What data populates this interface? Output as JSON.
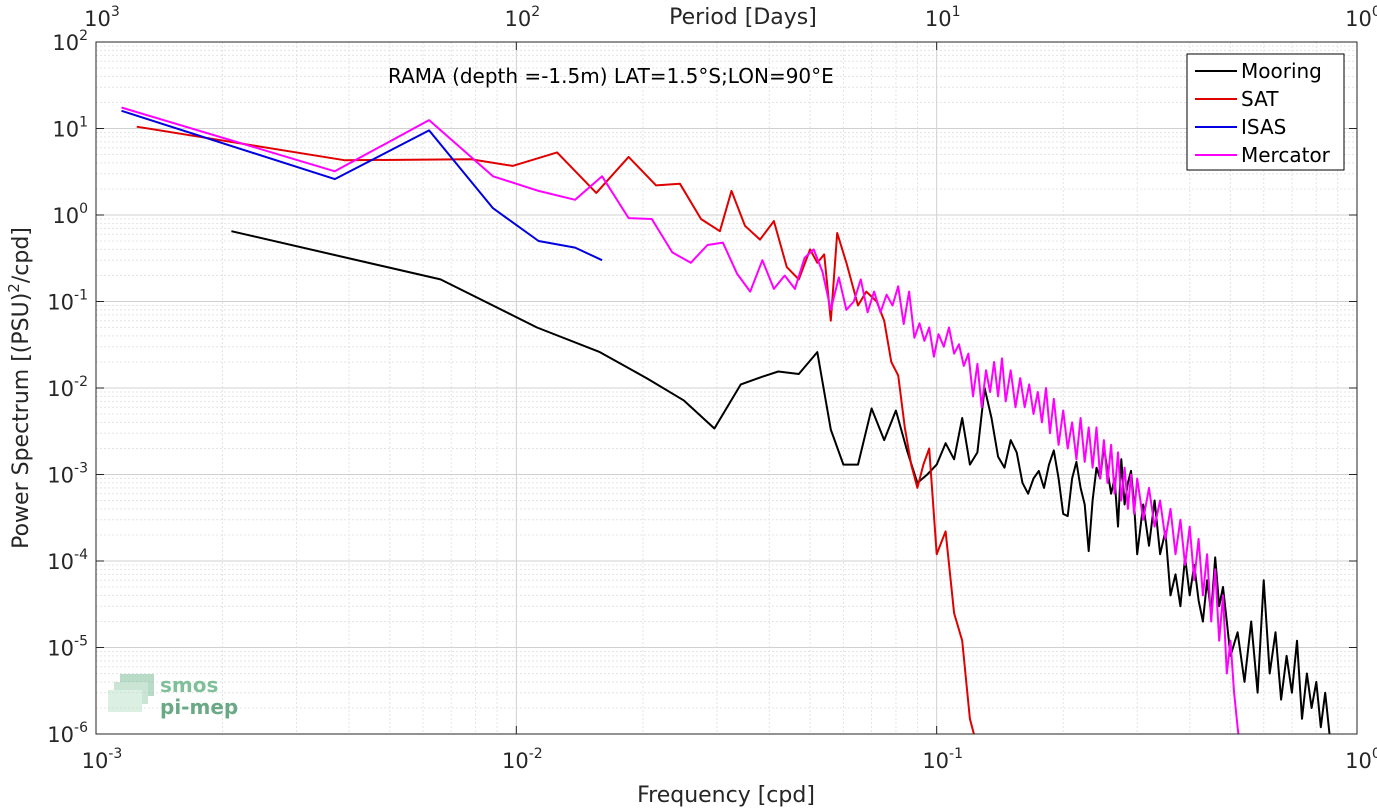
{
  "logo": {
    "line1": "smos",
    "line2": "pi-mep",
    "color": "#7fbf9a"
  },
  "chart_data": {
    "type": "line",
    "title": "",
    "annotation": "RAMA (depth =-1.5m) LAT=1.5°S;LON=90°E",
    "xlabel": "Frequency [cpd]",
    "ylabel": "Power Spectrum [(PSU)",
    "ylabel_sup": "2",
    "ylabel_tail": "/cpd]",
    "top_axis_label": "Period [Days]",
    "xscale": "log",
    "yscale": "log",
    "xlim": [
      0.001,
      1
    ],
    "ylim": [
      1e-06,
      100
    ],
    "grid": true,
    "legend_position": "top-right",
    "x_ticks": [
      {
        "base": "10",
        "exp": "-3"
      },
      {
        "base": "10",
        "exp": "-2"
      },
      {
        "base": "10",
        "exp": "-1"
      },
      {
        "base": "10",
        "exp": "0"
      }
    ],
    "y_ticks": [
      {
        "base": "10",
        "exp": "-6"
      },
      {
        "base": "10",
        "exp": "-5"
      },
      {
        "base": "10",
        "exp": "-4"
      },
      {
        "base": "10",
        "exp": "-3"
      },
      {
        "base": "10",
        "exp": "-2"
      },
      {
        "base": "10",
        "exp": "-1"
      },
      {
        "base": "10",
        "exp": "0"
      },
      {
        "base": "10",
        "exp": "1"
      },
      {
        "base": "10",
        "exp": "2"
      }
    ],
    "top_ticks": [
      {
        "base": "10",
        "exp": "3"
      },
      {
        "base": "10",
        "exp": "2"
      },
      {
        "base": "10",
        "exp": "1"
      },
      {
        "base": "10",
        "exp": "0"
      }
    ],
    "series": [
      {
        "name": "Mooring",
        "color": "#000000",
        "points": [
          [
            0.0021,
            0.65
          ],
          [
            0.0066,
            0.18
          ],
          [
            0.0112,
            0.05
          ],
          [
            0.0158,
            0.026
          ],
          [
            0.0204,
            0.013
          ],
          [
            0.025,
            0.0072
          ],
          [
            0.0296,
            0.0034
          ],
          [
            0.0342,
            0.011
          ],
          [
            0.0385,
            0.0135
          ],
          [
            0.042,
            0.0155
          ],
          [
            0.047,
            0.0145
          ],
          [
            0.052,
            0.026
          ],
          [
            0.056,
            0.0033
          ],
          [
            0.06,
            0.0013
          ],
          [
            0.065,
            0.0013
          ],
          [
            0.07,
            0.0058
          ],
          [
            0.075,
            0.0025
          ],
          [
            0.08,
            0.0055
          ],
          [
            0.085,
            0.0019
          ],
          [
            0.09,
            0.0008
          ],
          [
            0.095,
            0.001
          ],
          [
            0.1,
            0.0013
          ],
          [
            0.105,
            0.0023
          ],
          [
            0.11,
            0.0015
          ],
          [
            0.115,
            0.0045
          ],
          [
            0.12,
            0.0013
          ],
          [
            0.125,
            0.0018
          ],
          [
            0.13,
            0.01
          ],
          [
            0.135,
            0.0045
          ],
          [
            0.14,
            0.0016
          ],
          [
            0.145,
            0.0012
          ],
          [
            0.15,
            0.0025
          ],
          [
            0.155,
            0.0018
          ],
          [
            0.16,
            0.0008
          ],
          [
            0.165,
            0.0006
          ],
          [
            0.17,
            0.0009
          ],
          [
            0.175,
            0.0011
          ],
          [
            0.18,
            0.0007
          ],
          [
            0.185,
            0.0013
          ],
          [
            0.19,
            0.0019
          ],
          [
            0.195,
            0.0009
          ],
          [
            0.2,
            0.00035
          ],
          [
            0.205,
            0.00033
          ],
          [
            0.21,
            0.0009
          ],
          [
            0.215,
            0.0014
          ],
          [
            0.22,
            0.0007
          ],
          [
            0.225,
            0.00045
          ],
          [
            0.23,
            0.00013
          ],
          [
            0.235,
            0.0005
          ],
          [
            0.24,
            0.0012
          ],
          [
            0.245,
            0.0009
          ],
          [
            0.25,
            0.0021
          ],
          [
            0.255,
            0.0011
          ],
          [
            0.26,
            0.0006
          ],
          [
            0.265,
            0.0009
          ],
          [
            0.27,
            0.00025
          ],
          [
            0.275,
            0.0015
          ],
          [
            0.28,
            0.00045
          ],
          [
            0.285,
            0.0008
          ],
          [
            0.29,
            0.0011
          ],
          [
            0.295,
            0.00045
          ],
          [
            0.3,
            0.00012
          ],
          [
            0.31,
            0.00045
          ],
          [
            0.32,
            0.00015
          ],
          [
            0.33,
            0.0005
          ],
          [
            0.34,
            0.00012
          ],
          [
            0.35,
            0.00022
          ],
          [
            0.36,
            4e-05
          ],
          [
            0.37,
            7e-05
          ],
          [
            0.38,
            3e-05
          ],
          [
            0.39,
            0.00011
          ],
          [
            0.4,
            4e-05
          ],
          [
            0.41,
            9e-05
          ],
          [
            0.42,
            3.5e-05
          ],
          [
            0.43,
            2e-05
          ],
          [
            0.44,
            6e-05
          ],
          [
            0.45,
            2.5e-05
          ],
          [
            0.46,
            0.00011
          ],
          [
            0.47,
            3e-05
          ],
          [
            0.48,
            5e-05
          ],
          [
            0.49,
            2e-05
          ],
          [
            0.5,
            8e-06
          ],
          [
            0.52,
            1.5e-05
          ],
          [
            0.54,
            4e-06
          ],
          [
            0.56,
            2e-05
          ],
          [
            0.58,
            3e-06
          ],
          [
            0.6,
            6e-05
          ],
          [
            0.62,
            5e-06
          ],
          [
            0.64,
            1.5e-05
          ],
          [
            0.66,
            2.5e-06
          ],
          [
            0.68,
            8e-06
          ],
          [
            0.7,
            3e-06
          ],
          [
            0.72,
            1.2e-05
          ],
          [
            0.74,
            1.5e-06
          ],
          [
            0.76,
            5e-06
          ],
          [
            0.78,
            2e-06
          ],
          [
            0.8,
            4e-06
          ],
          [
            0.82,
            1.2e-06
          ],
          [
            0.84,
            3e-06
          ],
          [
            0.86,
            1e-06
          ]
        ]
      },
      {
        "name": "SAT",
        "color": "#e00000",
        "points": [
          [
            0.00125,
            10.5
          ],
          [
            0.0039,
            4.3
          ],
          [
            0.0078,
            4.4
          ],
          [
            0.0098,
            3.7
          ],
          [
            0.0125,
            5.3
          ],
          [
            0.0155,
            1.8
          ],
          [
            0.0185,
            4.7
          ],
          [
            0.0215,
            2.2
          ],
          [
            0.0245,
            2.3
          ],
          [
            0.0275,
            0.9
          ],
          [
            0.0305,
            0.65
          ],
          [
            0.0325,
            1.9
          ],
          [
            0.035,
            0.75
          ],
          [
            0.038,
            0.52
          ],
          [
            0.041,
            0.85
          ],
          [
            0.044,
            0.25
          ],
          [
            0.047,
            0.18
          ],
          [
            0.05,
            0.4
          ],
          [
            0.052,
            0.28
          ],
          [
            0.054,
            0.35
          ],
          [
            0.056,
            0.06
          ],
          [
            0.058,
            0.62
          ],
          [
            0.061,
            0.28
          ],
          [
            0.065,
            0.09
          ],
          [
            0.068,
            0.13
          ],
          [
            0.072,
            0.1
          ],
          [
            0.075,
            0.06
          ],
          [
            0.078,
            0.02
          ],
          [
            0.081,
            0.014
          ],
          [
            0.084,
            0.0035
          ],
          [
            0.087,
            0.0013
          ],
          [
            0.09,
            0.0007
          ],
          [
            0.093,
            0.0013
          ],
          [
            0.096,
            0.002
          ],
          [
            0.1,
            0.00012
          ],
          [
            0.105,
            0.00022
          ],
          [
            0.11,
            2.5e-05
          ],
          [
            0.115,
            1.2e-05
          ],
          [
            0.12,
            1.5e-06
          ],
          [
            0.125,
            7e-07
          ]
        ]
      },
      {
        "name": "ISAS",
        "color": "#0000e0",
        "points": [
          [
            0.00115,
            16
          ],
          [
            0.0037,
            2.6
          ],
          [
            0.0062,
            9.5
          ],
          [
            0.0088,
            1.2
          ],
          [
            0.0113,
            0.5
          ],
          [
            0.0138,
            0.42
          ],
          [
            0.016,
            0.3
          ]
        ]
      },
      {
        "name": "Mercator",
        "color": "#ff00ff",
        "points": [
          [
            0.00115,
            17.5
          ],
          [
            0.0037,
            3.2
          ],
          [
            0.0062,
            12.5
          ],
          [
            0.0088,
            2.8
          ],
          [
            0.0113,
            1.9
          ],
          [
            0.0138,
            1.5
          ],
          [
            0.016,
            2.8
          ],
          [
            0.0185,
            0.92
          ],
          [
            0.021,
            0.9
          ],
          [
            0.0235,
            0.37
          ],
          [
            0.026,
            0.28
          ],
          [
            0.0285,
            0.45
          ],
          [
            0.031,
            0.48
          ],
          [
            0.0335,
            0.21
          ],
          [
            0.036,
            0.13
          ],
          [
            0.0385,
            0.3
          ],
          [
            0.041,
            0.14
          ],
          [
            0.0435,
            0.2
          ],
          [
            0.046,
            0.14
          ],
          [
            0.0485,
            0.32
          ],
          [
            0.051,
            0.4
          ],
          [
            0.0535,
            0.22
          ],
          [
            0.056,
            0.08
          ],
          [
            0.0585,
            0.19
          ],
          [
            0.061,
            0.08
          ],
          [
            0.0635,
            0.1
          ],
          [
            0.066,
            0.18
          ],
          [
            0.0685,
            0.075
          ],
          [
            0.071,
            0.13
          ],
          [
            0.0735,
            0.075
          ],
          [
            0.076,
            0.12
          ],
          [
            0.0785,
            0.09
          ],
          [
            0.081,
            0.15
          ],
          [
            0.0835,
            0.055
          ],
          [
            0.086,
            0.13
          ],
          [
            0.0885,
            0.038
          ],
          [
            0.091,
            0.056
          ],
          [
            0.0935,
            0.035
          ],
          [
            0.096,
            0.05
          ],
          [
            0.0985,
            0.023
          ],
          [
            0.101,
            0.042
          ],
          [
            0.104,
            0.03
          ],
          [
            0.107,
            0.05
          ],
          [
            0.11,
            0.025
          ],
          [
            0.113,
            0.032
          ],
          [
            0.116,
            0.018
          ],
          [
            0.119,
            0.025
          ],
          [
            0.122,
            0.008
          ],
          [
            0.125,
            0.019
          ],
          [
            0.128,
            0.006
          ],
          [
            0.131,
            0.016
          ],
          [
            0.134,
            0.009
          ],
          [
            0.137,
            0.02
          ],
          [
            0.14,
            0.008
          ],
          [
            0.143,
            0.022
          ],
          [
            0.146,
            0.007
          ],
          [
            0.15,
            0.016
          ],
          [
            0.154,
            0.006
          ],
          [
            0.158,
            0.013
          ],
          [
            0.162,
            0.006
          ],
          [
            0.166,
            0.011
          ],
          [
            0.17,
            0.005
          ],
          [
            0.174,
            0.009
          ],
          [
            0.178,
            0.004
          ],
          [
            0.182,
            0.01
          ],
          [
            0.186,
            0.003
          ],
          [
            0.19,
            0.0075
          ],
          [
            0.195,
            0.0022
          ],
          [
            0.2,
            0.0055
          ],
          [
            0.205,
            0.002
          ],
          [
            0.21,
            0.004
          ],
          [
            0.215,
            0.0015
          ],
          [
            0.22,
            0.0045
          ],
          [
            0.225,
            0.0014
          ],
          [
            0.23,
            0.0035
          ],
          [
            0.235,
            0.0012
          ],
          [
            0.24,
            0.0035
          ],
          [
            0.245,
            0.0009
          ],
          [
            0.25,
            0.0025
          ],
          [
            0.255,
            0.0008
          ],
          [
            0.26,
            0.0022
          ],
          [
            0.265,
            0.0006
          ],
          [
            0.27,
            0.0018
          ],
          [
            0.275,
            0.0005
          ],
          [
            0.28,
            0.0012
          ],
          [
            0.285,
            0.0004
          ],
          [
            0.29,
            0.001
          ],
          [
            0.295,
            0.00035
          ],
          [
            0.3,
            0.0009
          ],
          [
            0.31,
            0.0003
          ],
          [
            0.32,
            0.0007
          ],
          [
            0.33,
            0.00025
          ],
          [
            0.34,
            0.0005
          ],
          [
            0.35,
            0.00018
          ],
          [
            0.36,
            0.0004
          ],
          [
            0.37,
            0.00012
          ],
          [
            0.38,
            0.0003
          ],
          [
            0.39,
            9e-05
          ],
          [
            0.4,
            0.00025
          ],
          [
            0.41,
            6e-05
          ],
          [
            0.42,
            0.00018
          ],
          [
            0.43,
            4e-05
          ],
          [
            0.44,
            0.00012
          ],
          [
            0.45,
            2e-05
          ],
          [
            0.46,
            8e-05
          ],
          [
            0.47,
            1.2e-05
          ],
          [
            0.48,
            4e-05
          ],
          [
            0.49,
            5e-06
          ],
          [
            0.5,
            1.2e-05
          ],
          [
            0.51,
            3e-06
          ],
          [
            0.52,
            1.2e-06
          ],
          [
            0.525,
            8e-07
          ]
        ]
      }
    ]
  }
}
